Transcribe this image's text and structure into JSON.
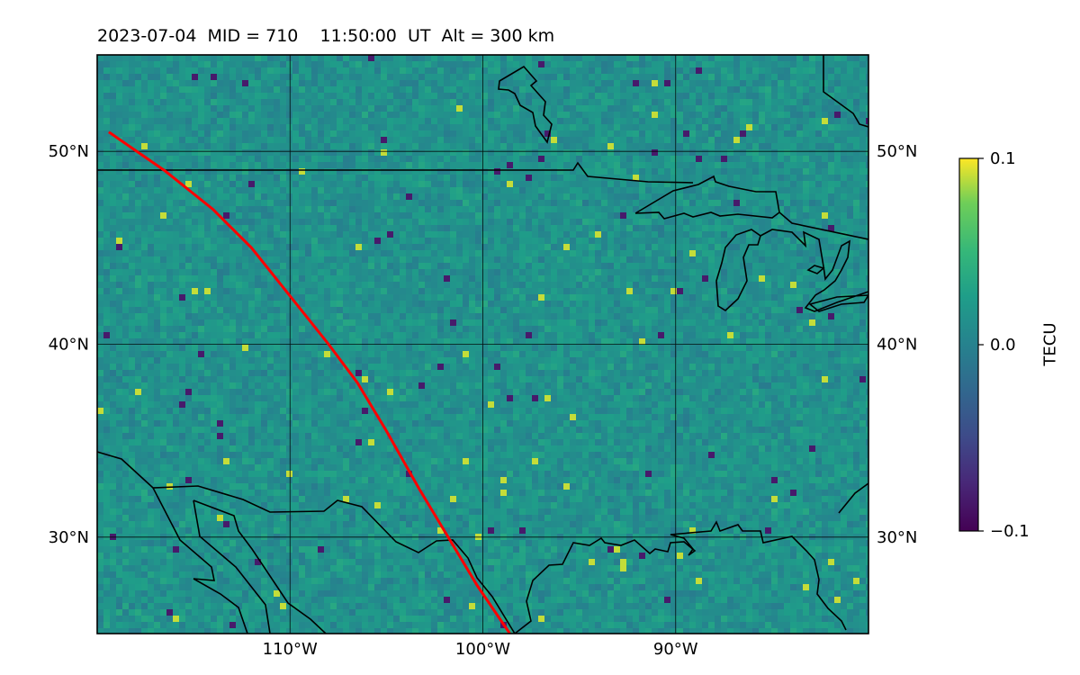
{
  "title": "2023-07-04  MID = 710    11:50:00  UT  Alt = 300 km",
  "map": {
    "lon_range": [
      -120,
      -80
    ],
    "lat_range": [
      25,
      55
    ],
    "lon_ticks": [
      {
        "value": -110,
        "label": "110°W"
      },
      {
        "value": -100,
        "label": "100°W"
      },
      {
        "value": -90,
        "label": "90°W"
      }
    ],
    "lat_ticks": [
      {
        "value": 50,
        "label": "50°N"
      },
      {
        "value": 40,
        "label": "40°N"
      },
      {
        "value": 30,
        "label": "30°N"
      }
    ],
    "grid": true,
    "colormap": "viridis",
    "track_color": "#ff0000",
    "track": [
      [
        -119.4,
        51.0
      ],
      [
        -116.5,
        49.0
      ],
      [
        -114.0,
        47.0
      ],
      [
        -112.0,
        45.0
      ],
      [
        -110.0,
        42.5
      ],
      [
        -108.0,
        40.0
      ],
      [
        -106.5,
        38.0
      ],
      [
        -105.0,
        35.5
      ],
      [
        -103.3,
        32.5
      ],
      [
        -101.5,
        29.5
      ],
      [
        -100.3,
        27.5
      ],
      [
        -98.6,
        25.0
      ]
    ]
  },
  "colorbar": {
    "label": "TECU",
    "min": -0.1,
    "max": 0.1,
    "ticks": [
      {
        "value": 0.1,
        "label": "0.1"
      },
      {
        "value": 0.0,
        "label": "0.0"
      },
      {
        "value": -0.1,
        "label": "−0.1"
      }
    ]
  }
}
